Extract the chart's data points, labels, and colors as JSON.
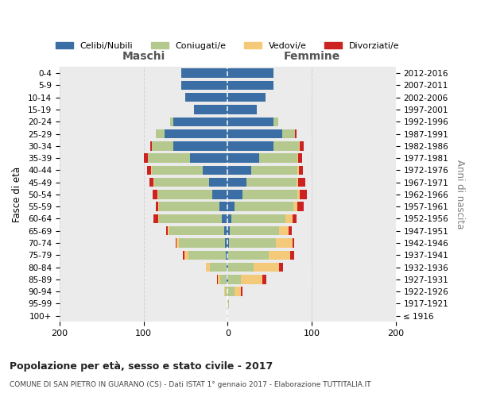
{
  "age_groups": [
    "100+",
    "95-99",
    "90-94",
    "85-89",
    "80-84",
    "75-79",
    "70-74",
    "65-69",
    "60-64",
    "55-59",
    "50-54",
    "45-49",
    "40-44",
    "35-39",
    "30-34",
    "25-29",
    "20-24",
    "15-19",
    "10-14",
    "5-9",
    "0-4"
  ],
  "birth_years": [
    "≤ 1916",
    "1917-1921",
    "1922-1926",
    "1927-1931",
    "1932-1936",
    "1937-1941",
    "1942-1946",
    "1947-1951",
    "1952-1956",
    "1957-1961",
    "1962-1966",
    "1967-1971",
    "1972-1976",
    "1977-1981",
    "1982-1986",
    "1987-1991",
    "1992-1996",
    "1997-2001",
    "2002-2006",
    "2007-2011",
    "2012-2016"
  ],
  "males": {
    "celibe": [
      0,
      0,
      0,
      1,
      1,
      2,
      3,
      4,
      7,
      10,
      18,
      22,
      30,
      45,
      65,
      75,
      65,
      40,
      50,
      55,
      55
    ],
    "coniugato": [
      0,
      0,
      3,
      8,
      20,
      45,
      55,
      65,
      75,
      72,
      65,
      65,
      60,
      50,
      25,
      10,
      3,
      0,
      0,
      0,
      0
    ],
    "vedovo": [
      0,
      0,
      1,
      3,
      5,
      4,
      3,
      2,
      1,
      1,
      1,
      1,
      1,
      0,
      0,
      0,
      0,
      0,
      0,
      0,
      0
    ],
    "divorziato": [
      0,
      0,
      0,
      1,
      0,
      2,
      1,
      2,
      5,
      2,
      5,
      5,
      5,
      5,
      2,
      0,
      0,
      0,
      0,
      0,
      0
    ]
  },
  "females": {
    "nubile": [
      0,
      0,
      0,
      1,
      1,
      1,
      2,
      3,
      4,
      8,
      18,
      22,
      28,
      38,
      55,
      65,
      55,
      35,
      45,
      55,
      55
    ],
    "coniugata": [
      0,
      2,
      8,
      15,
      30,
      48,
      55,
      58,
      65,
      70,
      65,
      60,
      55,
      45,
      30,
      15,
      5,
      0,
      0,
      0,
      0
    ],
    "vedova": [
      0,
      0,
      8,
      25,
      30,
      25,
      20,
      12,
      8,
      5,
      3,
      2,
      2,
      1,
      1,
      0,
      0,
      0,
      0,
      0,
      0
    ],
    "divorziata": [
      0,
      0,
      2,
      5,
      5,
      5,
      2,
      3,
      5,
      8,
      8,
      8,
      5,
      5,
      5,
      2,
      0,
      0,
      0,
      0,
      0
    ]
  },
  "color_celibe": "#3a6ea5",
  "color_coniugato": "#b5c98e",
  "color_vedovo": "#f5c97a",
  "color_divorziato": "#cc2222",
  "xlim": 200,
  "title": "Popolazione per età, sesso e stato civile - 2017",
  "subtitle": "COMUNE DI SAN PIETRO IN GUARANO (CS) - Dati ISTAT 1° gennaio 2017 - Elaborazione TUTTITALIA.IT",
  "ylabel": "Fasce di età",
  "ylabel_right": "Anni di nascita",
  "xlabel_maschi": "Maschi",
  "xlabel_femmine": "Femmine",
  "legend_labels": [
    "Celibi/Nubili",
    "Coniugati/e",
    "Vedovi/e",
    "Divorziati/e"
  ],
  "background_color": "#ffffff",
  "grid_color": "#cccccc"
}
